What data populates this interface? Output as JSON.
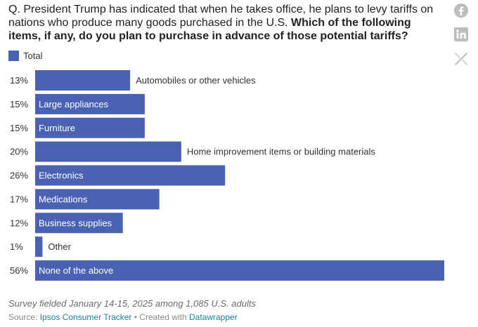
{
  "title": {
    "question": "Q. President Trump has indicated that when he takes office, he plans to levy tariffs on nations who produce many goods purchased in the U.S.",
    "emphasis": "Which of the following items, if any, do you plan to purchase in advance of those potential tariffs?"
  },
  "legend": {
    "label": "Total",
    "color": "#4a62b2"
  },
  "share": {
    "facebook_icon": "facebook-icon",
    "linkedin_icon": "linkedin-icon",
    "x_icon": "x-icon",
    "icon_color": "#bdbdbd"
  },
  "chart_data": {
    "type": "bar",
    "orientation": "horizontal",
    "categories": [
      "Automobiles or other vehicles",
      "Large appliances",
      "Furniture",
      "Home improvement items or building materials",
      "Electronics",
      "Medications",
      "Business supplies",
      "Other",
      "None of the above"
    ],
    "series": [
      {
        "name": "Total",
        "values": [
          13,
          15,
          15,
          20,
          26,
          17,
          12,
          1,
          56
        ],
        "color": "#4a62b2"
      }
    ],
    "value_suffix": "%",
    "xlim": [
      0,
      56
    ],
    "grid": false,
    "legend_position": "top-left"
  },
  "notes": {
    "survey": "Survey fielded January 14-15, 2025 among 1,085 U.S. adults",
    "source_prefix": "Source: ",
    "source_name": "Ipsos Consumer Tracker",
    "separator": " • Created with ",
    "tool_name": "Datawrapper"
  }
}
